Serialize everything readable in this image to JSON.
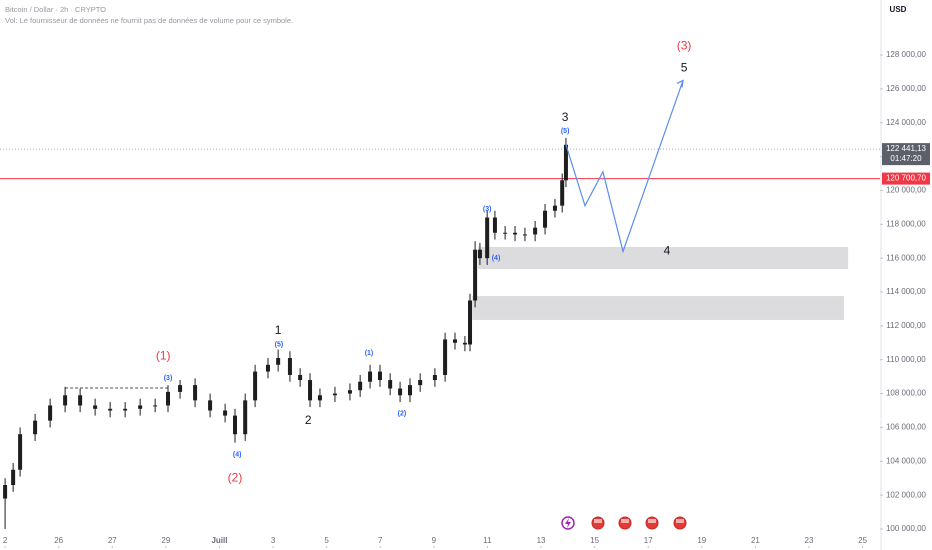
{
  "chart_data": {
    "type": "candlestick",
    "title": "Bitcoin / Dollar · 2h · CRYPTO",
    "subtitle": "Vol: Le fournisseur de données ne fournit pas de données de volume pour ce symbole.",
    "currency": "USD",
    "color": "#1e1e1e",
    "xlim": [
      -0.19,
      32.65
    ],
    "ylim": [
      98760,
      131250
    ],
    "xticks": [
      {
        "value": 0,
        "label": "2"
      },
      {
        "value": 2,
        "label": "26"
      },
      {
        "value": 4,
        "label": "27"
      },
      {
        "value": 6,
        "label": "29"
      },
      {
        "value": 8,
        "label": "Juill"
      },
      {
        "value": 10,
        "label": "3"
      },
      {
        "value": 12,
        "label": "5"
      },
      {
        "value": 14,
        "label": "7"
      },
      {
        "value": 16,
        "label": "9"
      },
      {
        "value": 18,
        "label": "11"
      },
      {
        "value": 20,
        "label": "13"
      },
      {
        "value": 22,
        "label": "15"
      },
      {
        "value": 24,
        "label": "17"
      },
      {
        "value": 26,
        "label": "19"
      },
      {
        "value": 28,
        "label": "21"
      },
      {
        "value": 30,
        "label": "23"
      },
      {
        "value": 32,
        "label": "25"
      }
    ],
    "yticks": [
      {
        "value": 100000,
        "label": "100 000,00"
      },
      {
        "value": 102000,
        "label": "102 000,00"
      },
      {
        "value": 104000,
        "label": "104 000,00"
      },
      {
        "value": 106000,
        "label": "106 000,00"
      },
      {
        "value": 108000,
        "label": "108 000,00"
      },
      {
        "value": 110000,
        "label": "110 000,00"
      },
      {
        "value": 112000,
        "label": "112 000,00"
      },
      {
        "value": 114000,
        "label": "114 000,00"
      },
      {
        "value": 116000,
        "label": "116 000,00"
      },
      {
        "value": 118000,
        "label": "118 000,00"
      },
      {
        "value": 120000,
        "label": "120 000,00"
      },
      {
        "value": 122000,
        "label": "122 000,00"
      },
      {
        "value": 124000,
        "label": "124 000,00"
      },
      {
        "value": 126000,
        "label": "126 000,00"
      },
      {
        "value": 128000,
        "label": "128 000,00"
      }
    ],
    "x": [
      0,
      0.3,
      0.56,
      1.12,
      1.68,
      2.24,
      2.8,
      3.36,
      3.92,
      4.48,
      5.04,
      5.6,
      6.08,
      6.53,
      7.09,
      7.65,
      8.21,
      8.58,
      8.96,
      9.33,
      9.81,
      10.19,
      10.63,
      11.01,
      11.38,
      11.75,
      12.31,
      12.87,
      13.25,
      13.62,
      13.99,
      14.37,
      14.74,
      15.11,
      15.49,
      16.04,
      16.42,
      16.79,
      17.16,
      17.35,
      17.54,
      17.72,
      17.99,
      18.28,
      18.66,
      19.03,
      19.4,
      19.78,
      20.15,
      20.52,
      20.79,
      20.93
    ],
    "open": [
      101800,
      102600,
      103500,
      105600,
      106400,
      107300,
      107900,
      107300,
      107100,
      107000,
      107100,
      107300,
      107300,
      108100,
      108500,
      107600,
      107000,
      106700,
      105600,
      107600,
      109300,
      109700,
      110100,
      109100,
      108800,
      107600,
      107900,
      108000,
      108200,
      108700,
      109300,
      108800,
      108300,
      107900,
      108500,
      108800,
      109100,
      111200,
      111000,
      110900,
      113500,
      116500,
      116000,
      118400,
      117500,
      117500,
      117400,
      117400,
      117800,
      118800,
      119100,
      120600
    ],
    "high": [
      103000,
      103900,
      106000,
      106800,
      107700,
      108400,
      108300,
      107700,
      107500,
      107500,
      107700,
      107700,
      108500,
      108800,
      108900,
      108000,
      107400,
      107100,
      108000,
      109700,
      110100,
      110600,
      110500,
      109500,
      109200,
      108300,
      108400,
      108600,
      109100,
      109700,
      109700,
      109200,
      108700,
      108900,
      109200,
      109500,
      111600,
      111600,
      111400,
      113900,
      117000,
      116900,
      118800,
      118800,
      117900,
      117900,
      117800,
      118200,
      119200,
      119500,
      121000,
      123100
    ],
    "low": [
      100000,
      102200,
      103100,
      105200,
      106000,
      106900,
      106900,
      106700,
      106600,
      106600,
      106700,
      106900,
      106900,
      107700,
      107200,
      106600,
      106300,
      105100,
      105200,
      107200,
      108900,
      109300,
      108700,
      108400,
      107200,
      107200,
      107500,
      107600,
      107800,
      108300,
      108400,
      107900,
      107500,
      107500,
      108100,
      108400,
      108700,
      110600,
      110500,
      110500,
      113100,
      115600,
      115600,
      117100,
      117100,
      117000,
      117000,
      117000,
      117400,
      118400,
      118700,
      120200
    ],
    "close": [
      102600,
      103500,
      105600,
      106400,
      107300,
      107900,
      107300,
      107100,
      107000,
      107100,
      107300,
      107300,
      108100,
      108500,
      107600,
      107000,
      106700,
      105600,
      107600,
      109300,
      109700,
      110100,
      109100,
      108800,
      107600,
      107900,
      108000,
      108200,
      108700,
      109300,
      108800,
      108300,
      107900,
      108500,
      108800,
      109100,
      111200,
      111000,
      110900,
      113500,
      116500,
      116000,
      118400,
      117500,
      117500,
      117400,
      117400,
      117800,
      118800,
      119100,
      120600,
      122700
    ],
    "projection": {
      "color": "#5b8def",
      "x": [
        20.93,
        21.64,
        22.31,
        23.06,
        25.3
      ],
      "values": [
        122700,
        119100,
        121100,
        116400,
        126500
      ]
    },
    "zones": [
      {
        "x": [
          17.65,
          31.46
        ],
        "top": 116660,
        "bottom": 115360,
        "color": "#dcdcdf"
      },
      {
        "x": [
          17.43,
          31.31
        ],
        "top": 113760,
        "bottom": 112350,
        "color": "#dcdcdf"
      }
    ],
    "resistance": {
      "x": [
        2.24,
        6.16
      ],
      "value": 108330
    },
    "last_price": {
      "value": 122441.13,
      "label": "122 441,13",
      "countdown": "01:47:20",
      "color": "#5d606b"
    },
    "level": {
      "value": 120700.7,
      "label": "120 700,70",
      "color": "#f23645"
    },
    "annotations": [
      {
        "text": "(1)",
        "x": 5.9,
        "y": 110200,
        "color": "#f23645",
        "size": "large"
      },
      {
        "text": "(3)",
        "x": 6.08,
        "y": 108900,
        "color": "#2962ff",
        "size": "small"
      },
      {
        "text": "(4)",
        "x": 8.66,
        "y": 104400,
        "color": "#2962ff",
        "size": "small"
      },
      {
        "text": "(2)",
        "x": 8.58,
        "y": 103000,
        "color": "#f23645",
        "size": "large"
      },
      {
        "text": "1",
        "x": 10.19,
        "y": 111700,
        "color": "#131722",
        "size": "large"
      },
      {
        "text": "(5)",
        "x": 10.22,
        "y": 110900,
        "color": "#2962ff",
        "size": "small"
      },
      {
        "text": "2",
        "x": 11.31,
        "y": 106400,
        "color": "#131722",
        "size": "large"
      },
      {
        "text": "(1)",
        "x": 13.58,
        "y": 110400,
        "color": "#2962ff",
        "size": "small"
      },
      {
        "text": "(2)",
        "x": 14.81,
        "y": 106800,
        "color": "#2962ff",
        "size": "small"
      },
      {
        "text": "(3)",
        "x": 17.99,
        "y": 118900,
        "color": "#2962ff",
        "size": "small"
      },
      {
        "text": "(4)",
        "x": 18.32,
        "y": 116000,
        "color": "#2962ff",
        "size": "small"
      },
      {
        "text": "3",
        "x": 20.9,
        "y": 124300,
        "color": "#131722",
        "size": "large"
      },
      {
        "text": "(5)",
        "x": 20.9,
        "y": 123500,
        "color": "#2962ff",
        "size": "small"
      },
      {
        "text": "(3)",
        "x": 25.34,
        "y": 128500,
        "color": "#f23645",
        "size": "large"
      },
      {
        "text": "5",
        "x": 25.34,
        "y": 127200,
        "color": "#131722",
        "size": "large"
      },
      {
        "text": "4",
        "x": 24.7,
        "y": 116400,
        "color": "#131722",
        "size": "large"
      }
    ]
  }
}
